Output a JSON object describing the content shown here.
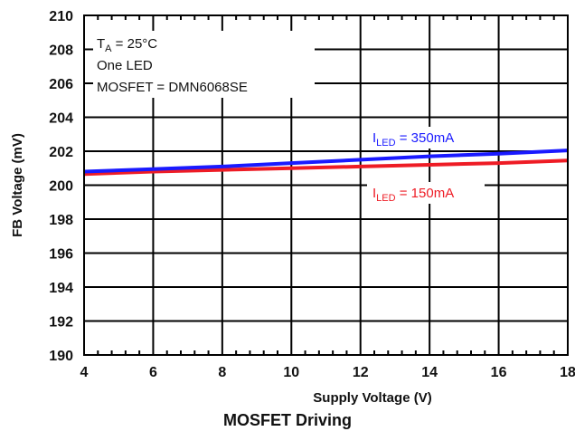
{
  "caption": "MOSFET Driving",
  "chart_data": {
    "type": "line",
    "xlabel": "Supply Voltage (V)",
    "ylabel": "FB Voltage (mV)",
    "xlim": [
      4,
      18
    ],
    "ylim": [
      190,
      210
    ],
    "xticks": [
      4,
      6,
      8,
      10,
      12,
      14,
      16,
      18
    ],
    "yticks": [
      190,
      192,
      194,
      196,
      198,
      200,
      202,
      204,
      206,
      208,
      210
    ],
    "xtick_labels": [
      "4",
      "6",
      "8",
      "10",
      "12",
      "14",
      "16",
      "18"
    ],
    "ytick_labels": [
      "190",
      "192",
      "194",
      "196",
      "198",
      "200",
      "202",
      "204",
      "206",
      "208",
      "210"
    ],
    "grid": true,
    "conditions": {
      "temp_main": "T",
      "temp_sub": "A",
      "temp_rest": " = 25°C",
      "line2": "One LED",
      "line3": "MOSFET = DMN6068SE"
    },
    "series": [
      {
        "name": "ILED = 350mA",
        "label_main": "I",
        "label_sub": "LED",
        "label_rest": " = 350mA",
        "color": "#1a1aff",
        "x": [
          4,
          6,
          8,
          10,
          12,
          14,
          16,
          18
        ],
        "y": [
          200.8,
          200.95,
          201.1,
          201.3,
          201.5,
          201.7,
          201.85,
          202.05
        ]
      },
      {
        "name": "ILED = 150mA",
        "label_main": "I",
        "label_sub": "LED",
        "label_rest": " = 150mA",
        "color": "#ee1c25",
        "x": [
          4,
          6,
          8,
          10,
          12,
          14,
          16,
          18
        ],
        "y": [
          200.65,
          200.8,
          200.9,
          201.0,
          201.1,
          201.2,
          201.3,
          201.45
        ]
      }
    ]
  }
}
